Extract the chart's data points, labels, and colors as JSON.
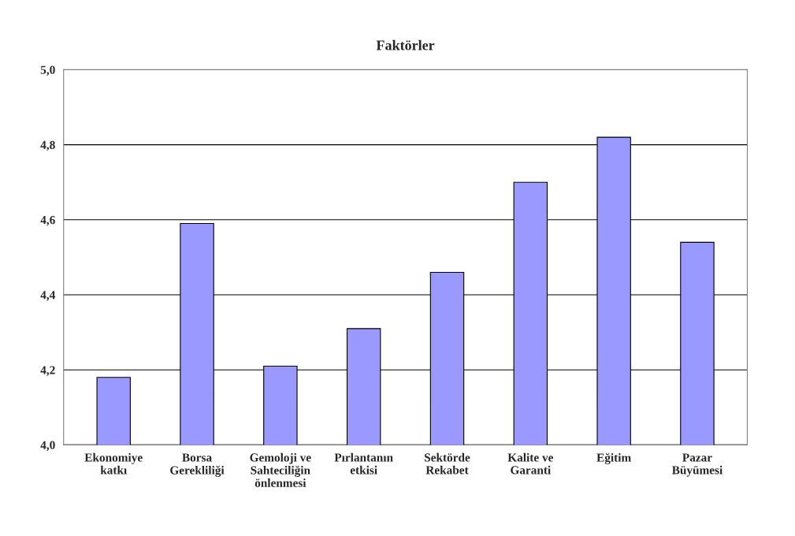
{
  "chart_data": {
    "type": "bar",
    "title": "Faktörler",
    "categories": [
      "Ekonomiye\nkatkı",
      "Borsa\nGerekliliği",
      "Gemoloji ve\nSahteciliğin\nönlenmesi",
      "Pırlantanın\netkisi",
      "Sektörde\nRekabet",
      "Kalite ve\nGaranti",
      "Eğitim",
      "Pazar\nBüyümesi"
    ],
    "values": [
      4.18,
      4.59,
      4.21,
      4.31,
      4.46,
      4.7,
      4.82,
      4.54
    ],
    "color": "#9999ff",
    "ylim": [
      4.0,
      5.0
    ],
    "yticks": [
      {
        "value": 4.0,
        "label": "4,0"
      },
      {
        "value": 4.2,
        "label": "4,2"
      },
      {
        "value": 4.4,
        "label": "4,4"
      },
      {
        "value": 4.6,
        "label": "4,6"
      },
      {
        "value": 4.8,
        "label": "4,8"
      },
      {
        "value": 5.0,
        "label": "5,0"
      }
    ],
    "grid": "y"
  }
}
